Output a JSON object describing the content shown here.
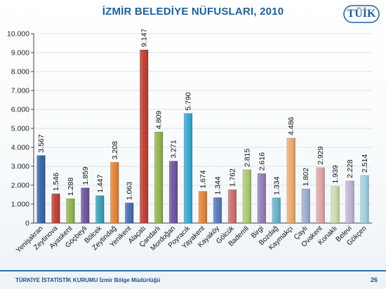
{
  "title": "İZMİR BELEDİYE NÜFUSLARI, 2010",
  "logo_text": "TÜİK",
  "footer": {
    "org": "TÜRKİYE İSTATİSTİK KURUMU",
    "office": "İzmir Bölge Müdürlüğü",
    "page": "26"
  },
  "chart_data": {
    "type": "bar",
    "categories": [
      "Yenişakran",
      "Zeytinova",
      "Ayaskent",
      "Göçbeyli",
      "Bölcek",
      "Zeytindağ",
      "Yenikent",
      "Alaçatı",
      "Çandarlı",
      "Mordoğan",
      "Poyracık",
      "Yayakent",
      "Kayaköy",
      "Gölcük",
      "Bademli",
      "Birgi",
      "Bozdağ",
      "Kaymakçı",
      "Çaylı",
      "Ovakent",
      "Konaklı",
      "Belevi",
      "Gökçen"
    ],
    "values": [
      3567,
      1546,
      1288,
      1859,
      1447,
      3208,
      1063,
      9147,
      4809,
      3271,
      5790,
      1674,
      1344,
      1762,
      2815,
      2616,
      1334,
      4486,
      1802,
      2929,
      1939,
      2228,
      2514
    ],
    "value_labels": [
      "3.567",
      "1.546",
      "1.288",
      "1.859",
      "1.447",
      "3.208",
      "1.063",
      "9.147",
      "4.809",
      "3.271",
      "5.790",
      "1.674",
      "1.344",
      "1.762",
      "2.815",
      "2.616",
      "1.334",
      "4.486",
      "1.802",
      "2.929",
      "1.939",
      "2.228",
      "2.514"
    ],
    "colors": [
      "#2f5fa8",
      "#c0392b",
      "#8fb345",
      "#6b4f9e",
      "#2f9fb5",
      "#e6802d",
      "#3f67b2",
      "#c0392b",
      "#8fb345",
      "#6b4f9e",
      "#2fa8d0",
      "#e6802d",
      "#4f78c0",
      "#c96b6b",
      "#a9c96b",
      "#8f7cb8",
      "#5fb5cc",
      "#f0a866",
      "#98acd3",
      "#e0a3a3",
      "#c9dca8",
      "#bfb2d6",
      "#9fd0e2"
    ],
    "ylim": [
      0,
      10000
    ],
    "yticks": [
      0,
      1000,
      2000,
      3000,
      4000,
      5000,
      6000,
      7000,
      8000,
      9000,
      10000
    ],
    "ytick_labels": [
      "0",
      "1.000",
      "2.000",
      "3.000",
      "4.000",
      "5.000",
      "6.000",
      "7.000",
      "8.000",
      "9.000",
      "10.000"
    ],
    "grid": true,
    "xlabel": "",
    "ylabel": ""
  }
}
